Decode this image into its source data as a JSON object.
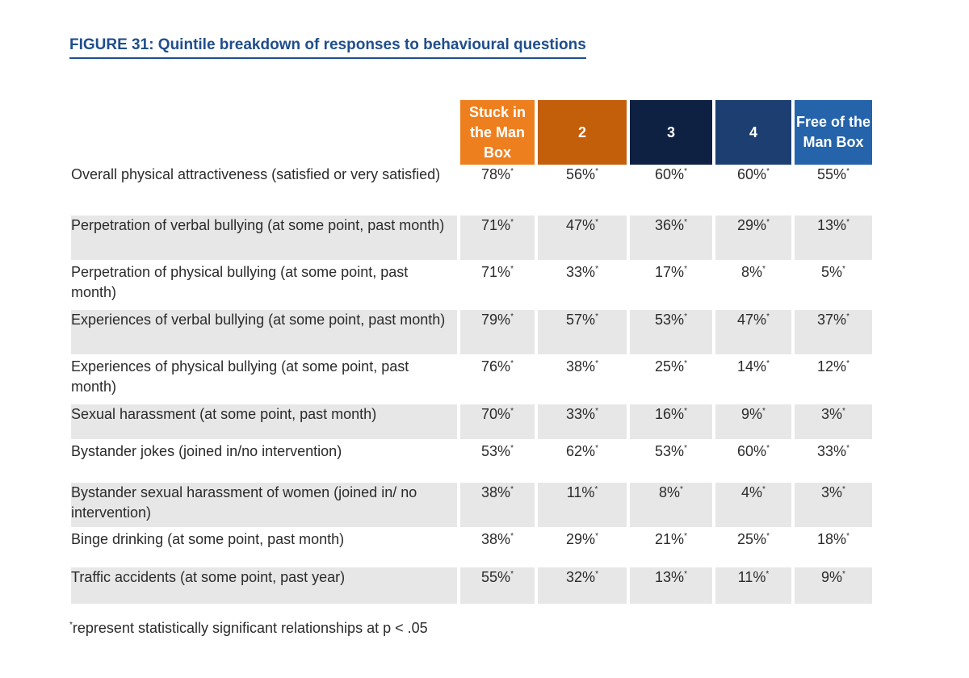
{
  "title": "FIGURE 31: Quintile breakdown of responses to behavioural questions",
  "columns": [
    {
      "label": "Stuck in the Man Box",
      "color": "#ee7f1e"
    },
    {
      "label": "2",
      "color": "#c35f0a"
    },
    {
      "label": "3",
      "color": "#0e2143"
    },
    {
      "label": "4",
      "color": "#1c3e70"
    },
    {
      "label": "Free of the Man Box",
      "color": "#2563aa"
    }
  ],
  "rows": [
    {
      "label": "Overall physical attractiveness (satisfied or very satisfied)",
      "values": [
        "78%",
        "56%",
        "60%",
        "60%",
        "55%"
      ]
    },
    {
      "label": "Perpetration of verbal bullying (at some point, past month)",
      "values": [
        "71%",
        "47%",
        "36%",
        "29%",
        "13%"
      ]
    },
    {
      "label": "Perpetration of physical bullying (at some point, past month)",
      "values": [
        "71%",
        "33%",
        "17%",
        "8%",
        "5%"
      ]
    },
    {
      "label": "Experiences of verbal bullying (at some point, past month)",
      "values": [
        "79%",
        "57%",
        "53%",
        "47%",
        "37%"
      ]
    },
    {
      "label": "Experiences of physical bullying (at some point, past month)",
      "values": [
        "76%",
        "38%",
        "25%",
        "14%",
        "12%"
      ]
    },
    {
      "label": "Sexual harassment (at some point, past month)",
      "values": [
        "70%",
        "33%",
        "16%",
        "9%",
        "3%"
      ]
    },
    {
      "label": "Bystander jokes (joined in/no intervention)",
      "values": [
        "53%",
        "62%",
        "53%",
        "60%",
        "33%"
      ]
    },
    {
      "label": "Bystander sexual harassment of women (joined in/ no intervention)",
      "values": [
        "38%",
        "11%",
        "8%",
        "4%",
        "3%"
      ]
    },
    {
      "label": "Binge drinking (at some point, past month)",
      "values": [
        "38%",
        "29%",
        "21%",
        "25%",
        "18%"
      ]
    },
    {
      "label": "Traffic accidents (at some point, past year)",
      "values": [
        "55%",
        "32%",
        "13%",
        "11%",
        "9%"
      ]
    }
  ],
  "significance_marker": "*",
  "footnote": "represent statistically significant relationships at p < .05"
}
